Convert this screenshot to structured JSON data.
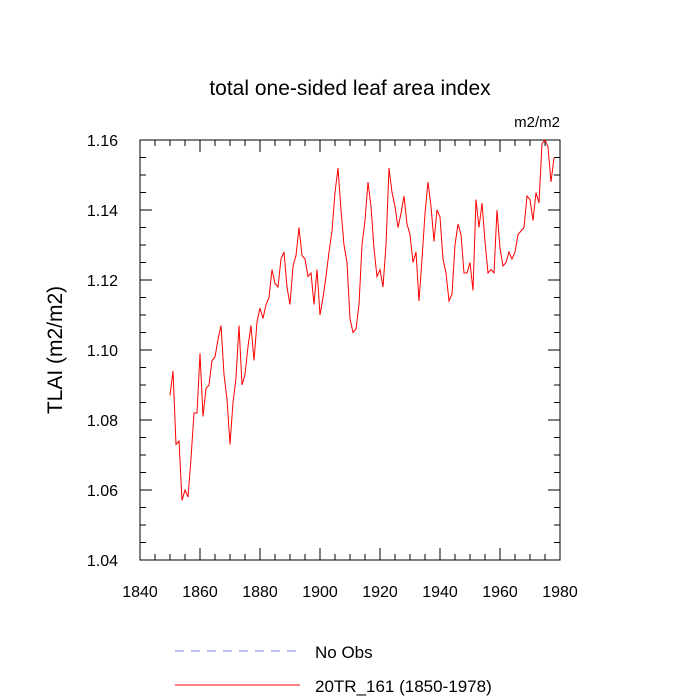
{
  "chart_data": {
    "type": "line",
    "title": "total one-sided leaf area index",
    "units_label": "m2/m2",
    "xlabel": "",
    "ylabel": "TLAI  (m2/m2)",
    "xlim": [
      1840,
      1980
    ],
    "ylim": [
      1.04,
      1.16
    ],
    "x_ticks": [
      1840,
      1860,
      1880,
      1900,
      1920,
      1940,
      1960,
      1980
    ],
    "y_ticks": [
      1.04,
      1.06,
      1.08,
      1.1,
      1.12,
      1.14,
      1.16
    ],
    "y_tick_labels": [
      "1.04",
      "1.06",
      "1.08",
      "1.10",
      "1.12",
      "1.14",
      "1.16"
    ],
    "legend": [
      {
        "label": "No Obs",
        "color": "#8080ff",
        "style": "dashed"
      },
      {
        "label": "20TR_161 (1850-1978)",
        "color": "#ff0000",
        "style": "solid"
      }
    ],
    "series": [
      {
        "name": "20TR_161 (1850-1978)",
        "color": "#ff0000",
        "x_start": 1850,
        "values": [
          1.087,
          1.094,
          1.073,
          1.074,
          1.057,
          1.06,
          1.058,
          1.069,
          1.082,
          1.082,
          1.099,
          1.081,
          1.089,
          1.09,
          1.097,
          1.098,
          1.103,
          1.107,
          1.093,
          1.086,
          1.073,
          1.085,
          1.092,
          1.107,
          1.09,
          1.093,
          1.101,
          1.107,
          1.097,
          1.108,
          1.112,
          1.109,
          1.113,
          1.115,
          1.123,
          1.119,
          1.118,
          1.126,
          1.128,
          1.118,
          1.113,
          1.124,
          1.127,
          1.135,
          1.127,
          1.126,
          1.121,
          1.122,
          1.113,
          1.123,
          1.11,
          1.115,
          1.121,
          1.128,
          1.134,
          1.145,
          1.152,
          1.14,
          1.13,
          1.125,
          1.109,
          1.105,
          1.106,
          1.113,
          1.13,
          1.137,
          1.148,
          1.141,
          1.129,
          1.121,
          1.123,
          1.118,
          1.13,
          1.152,
          1.145,
          1.141,
          1.135,
          1.139,
          1.144,
          1.136,
          1.133,
          1.125,
          1.128,
          1.114,
          1.126,
          1.139,
          1.148,
          1.141,
          1.131,
          1.14,
          1.138,
          1.126,
          1.122,
          1.114,
          1.116,
          1.13,
          1.136,
          1.133,
          1.122,
          1.122,
          1.125,
          1.117,
          1.143,
          1.135,
          1.142,
          1.131,
          1.122,
          1.123,
          1.122,
          1.14,
          1.129,
          1.124,
          1.125,
          1.128,
          1.126,
          1.128,
          1.133,
          1.134,
          1.135,
          1.144,
          1.143,
          1.137,
          1.145,
          1.142,
          1.159,
          1.16,
          1.158,
          1.148,
          1.155
        ]
      }
    ]
  }
}
